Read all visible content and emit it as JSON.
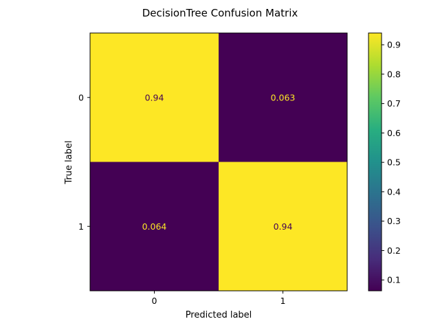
{
  "chart_data": {
    "type": "heatmap",
    "title": "DecisionTree Confusion Matrix",
    "xlabel": "Predicted label",
    "ylabel": "True label",
    "x_categories": [
      "0",
      "1"
    ],
    "y_categories": [
      "0",
      "1"
    ],
    "values": [
      [
        0.94,
        0.063
      ],
      [
        0.064,
        0.94
      ]
    ],
    "cell_labels": [
      [
        "0.94",
        "0.063"
      ],
      [
        "0.064",
        "0.94"
      ]
    ],
    "colormap": "viridis",
    "color_range": [
      0.063,
      0.94
    ],
    "colorbar_ticks": [
      "0.1",
      "0.2",
      "0.3",
      "0.4",
      "0.5",
      "0.6",
      "0.7",
      "0.8",
      "0.9"
    ],
    "colors": {
      "high": "#fde725",
      "low": "#440154",
      "label_on_dark": "#fde725",
      "label_on_light": "#440154"
    }
  }
}
